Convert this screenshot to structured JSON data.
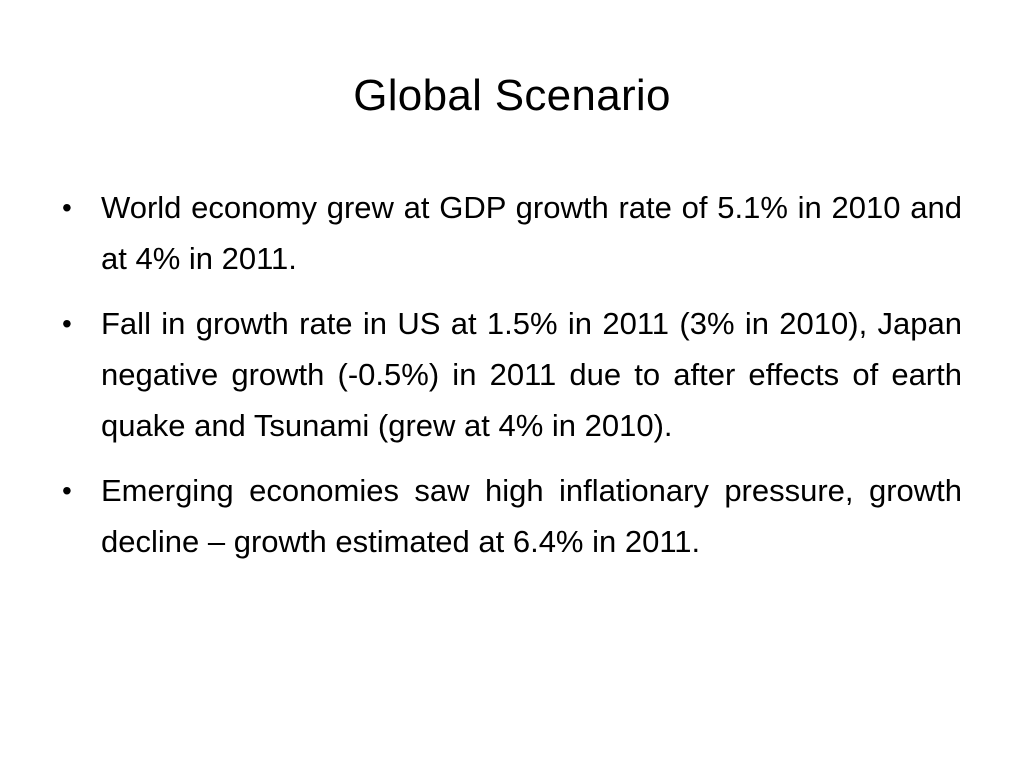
{
  "slide": {
    "title": "Global Scenario",
    "bullets": [
      "World economy grew at GDP growth rate of 5.1% in 2010 and at 4% in 2011.",
      "Fall in growth rate in US at 1.5% in 2011 (3% in 2010), Japan negative growth (-0.5%) in 2011 due to after effects of earth quake and Tsunami (grew at 4% in 2010).",
      "Emerging economies saw high inflationary pressure, growth decline – growth estimated at 6.4% in 2011."
    ],
    "bullet_glyph": "•"
  }
}
